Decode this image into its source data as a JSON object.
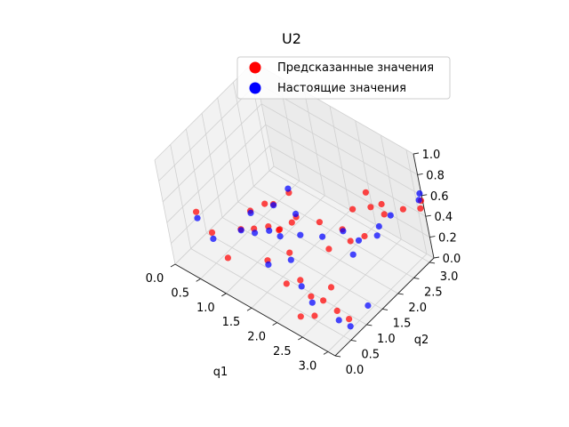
{
  "chart_data": {
    "type": "scatter",
    "dimensions": 3,
    "title": "U2",
    "xlabel": "q1",
    "ylabel": "q2",
    "zlabel": "",
    "xlim": [
      0,
      3.14
    ],
    "ylim": [
      0,
      3.14
    ],
    "zlim": [
      0,
      1
    ],
    "xticks": [
      "0.0",
      "0.5",
      "1.0",
      "1.5",
      "2.0",
      "2.5",
      "3.0"
    ],
    "yticks": [
      "0.0",
      "0.5",
      "1.0",
      "1.5",
      "2.0",
      "2.5",
      "3.0"
    ],
    "zticks": [
      "0.0",
      "0.2",
      "0.4",
      "0.6",
      "0.8",
      "1.0"
    ],
    "grid": true,
    "legend_position": "top-right",
    "series": [
      {
        "name": "Предсказанные значения",
        "color": "#ff0000",
        "points": [
          [
            0.26,
            0.52,
            0.42
          ],
          [
            0.53,
            0.51,
            0.3
          ],
          [
            0.78,
            0.5,
            0.13
          ],
          [
            0.8,
            0.97,
            0.27
          ],
          [
            0.78,
            1.34,
            0.33
          ],
          [
            0.98,
            1.52,
            0.4
          ],
          [
            1.05,
            1.02,
            0.33
          ],
          [
            1.31,
            1.1,
            0.4
          ],
          [
            1.06,
            1.65,
            0.38
          ],
          [
            1.55,
            1.1,
            0.44
          ],
          [
            1.57,
            0.59,
            0.3
          ],
          [
            1.32,
            1.88,
            0.26
          ],
          [
            1.84,
            0.89,
            0.36
          ],
          [
            1.88,
            0.6,
            0.16
          ],
          [
            2.1,
            0.72,
            0.22
          ],
          [
            2.36,
            0.61,
            0.17
          ],
          [
            2.36,
            0.23,
            0.09
          ],
          [
            2.57,
            0.35,
            0.12
          ],
          [
            2.61,
            0.61,
            0.2
          ],
          [
            2.62,
            0.88,
            0.25
          ],
          [
            2.88,
            0.6,
            0.18
          ],
          [
            3.1,
            0.61,
            0.16
          ],
          [
            2.36,
            1.33,
            0.41
          ],
          [
            2.33,
            1.83,
            0.44
          ],
          [
            2.36,
            2.17,
            0.54
          ],
          [
            2.64,
            1.61,
            0.48
          ],
          [
            2.83,
            1.78,
            0.53
          ],
          [
            2.36,
            2.61,
            0.57
          ],
          [
            2.62,
            2.35,
            0.58
          ],
          [
            2.88,
            2.36,
            0.58
          ],
          [
            2.64,
            2.63,
            0.53
          ],
          [
            2.88,
            2.89,
            0.47
          ],
          [
            3.1,
            3.09,
            0.48
          ],
          [
            3.12,
            3.12,
            0.55
          ],
          [
            1.83,
            1.86,
            0.36
          ],
          [
            1.6,
            1.4,
            0.43
          ],
          [
            1.33,
            1.34,
            0.3
          ],
          [
            1.08,
            2.1,
            0.36
          ]
        ]
      },
      {
        "name": "Настоящие значения",
        "color": "#0000ff",
        "points": [
          [
            0.26,
            0.52,
            0.36
          ],
          [
            0.53,
            0.51,
            0.24
          ],
          [
            1.05,
            1.02,
            0.29
          ],
          [
            1.31,
            1.1,
            0.36
          ],
          [
            1.57,
            0.59,
            0.26
          ],
          [
            1.84,
            0.89,
            0.29
          ],
          [
            2.1,
            0.72,
            0.16
          ],
          [
            2.36,
            0.61,
            0.11
          ],
          [
            2.88,
            0.6,
            0.09
          ],
          [
            3.1,
            0.61,
            0.09
          ],
          [
            3.12,
            1.16,
            0.13
          ],
          [
            1.32,
            1.88,
            0.29
          ],
          [
            1.55,
            1.62,
            0.23
          ],
          [
            1.83,
            1.86,
            0.22
          ],
          [
            2.08,
            2.14,
            0.26
          ],
          [
            2.36,
            2.17,
            0.24
          ],
          [
            2.59,
            2.41,
            0.28
          ],
          [
            2.92,
            2.11,
            0.55
          ],
          [
            2.94,
            2.45,
            0.56
          ],
          [
            3.1,
            3.09,
            0.56
          ],
          [
            3.12,
            3.12,
            0.62
          ],
          [
            2.64,
            1.61,
            0.35
          ],
          [
            1.08,
            2.1,
            0.4
          ],
          [
            1.33,
            1.34,
            0.24
          ],
          [
            0.8,
            0.97,
            0.26
          ],
          [
            0.78,
            1.34,
            0.31
          ],
          [
            1.06,
            1.65,
            0.37
          ]
        ]
      }
    ]
  }
}
